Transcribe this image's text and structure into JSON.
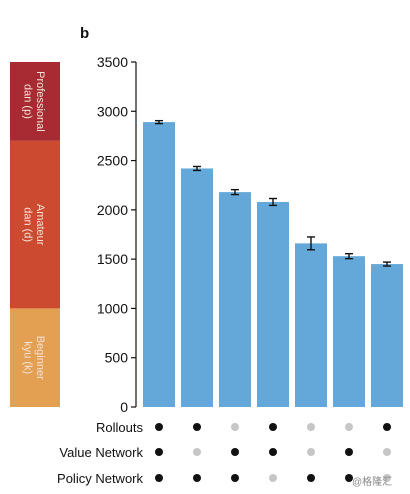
{
  "panel_label": "b",
  "watermark": "@格隆汇",
  "colors": {
    "bar": "#63a8d8",
    "error": "#111111",
    "dot_on": "#111111",
    "dot_off": "#c6c6c6",
    "band_professional": "#a82a33",
    "band_amateur": "#cc4b30",
    "band_beginner": "#e4a052"
  },
  "chart_data": {
    "type": "bar",
    "ylim": [
      0,
      3500
    ],
    "yticks": [
      0,
      500,
      1000,
      1500,
      2000,
      2500,
      3000,
      3500
    ],
    "bars": [
      {
        "value": 2890,
        "err": 15
      },
      {
        "value": 2420,
        "err": 20
      },
      {
        "value": 2180,
        "err": 25
      },
      {
        "value": 2080,
        "err": 35
      },
      {
        "value": 1660,
        "err": 65
      },
      {
        "value": 1530,
        "err": 25
      },
      {
        "value": 1450,
        "err": 20
      }
    ],
    "rank_bands": [
      {
        "line1": "Professional",
        "line2": "dan (p)",
        "ylim": [
          2700,
          3500
        ],
        "color_key": "band_professional"
      },
      {
        "line1": "Amateur",
        "line2": "dan (d)",
        "ylim": [
          1000,
          2700
        ],
        "color_key": "band_amateur"
      },
      {
        "line1": "Beginner",
        "line2": "kyu (k)",
        "ylim": [
          0,
          1000
        ],
        "color_key": "band_beginner"
      }
    ],
    "component_rows": [
      {
        "label": "Rollouts",
        "on": [
          true,
          true,
          false,
          true,
          false,
          false,
          true
        ]
      },
      {
        "label": "Value Network",
        "on": [
          true,
          false,
          true,
          true,
          false,
          true,
          false
        ]
      },
      {
        "label": "Policy Network",
        "on": [
          true,
          true,
          true,
          false,
          true,
          true,
          false
        ]
      }
    ]
  }
}
